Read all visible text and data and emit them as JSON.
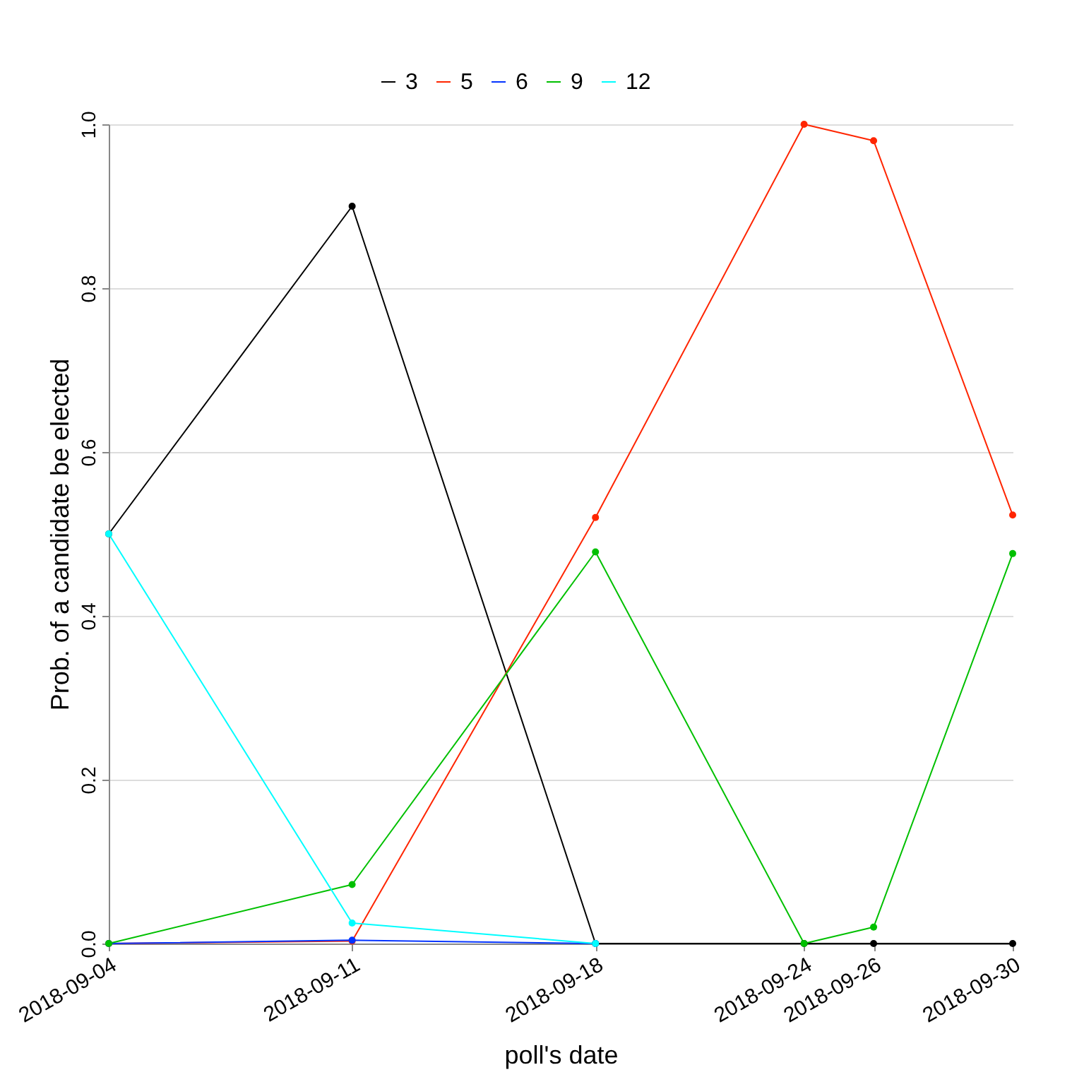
{
  "chart_data": {
    "type": "line",
    "xlabel": "poll's date",
    "ylabel": "Prob. of a candidate be elected",
    "x": [
      "2018-09-04",
      "2018-09-11",
      "2018-09-18",
      "2018-09-24",
      "2018-09-26",
      "2018-09-30"
    ],
    "series": [
      {
        "name": "3",
        "color": "#000000",
        "values": [
          0.5,
          0.9,
          0,
          0,
          0,
          0
        ]
      },
      {
        "name": "5",
        "color": "#ff2500",
        "values": [
          0,
          0.003,
          0.52,
          1.0,
          0.98,
          0.523
        ]
      },
      {
        "name": "6",
        "color": "#0433ff",
        "values": [
          0,
          0.004,
          0,
          null,
          null,
          null
        ]
      },
      {
        "name": "9",
        "color": "#00c000",
        "values": [
          0,
          0.072,
          0.478,
          0,
          0.02,
          0.476
        ]
      },
      {
        "name": "12",
        "color": "#00fdff",
        "values": [
          0.5,
          0.025,
          0,
          null,
          null,
          null
        ]
      }
    ],
    "xlim": [
      "2018-09-04",
      "2018-09-30"
    ],
    "xticks": [
      "2018-09-04",
      "2018-09-11",
      "2018-09-18",
      "2018-09-24",
      "2018-09-26",
      "2018-09-30"
    ],
    "ylim": [
      0,
      1
    ],
    "yticks": [
      {
        "value": 0,
        "label": "0.0"
      },
      0.2,
      0.4,
      0.6,
      0.8,
      {
        "value": 1,
        "label": "1.0"
      }
    ],
    "grid": "y",
    "legend": "top",
    "marker": "circle",
    "line_style": "solid"
  }
}
